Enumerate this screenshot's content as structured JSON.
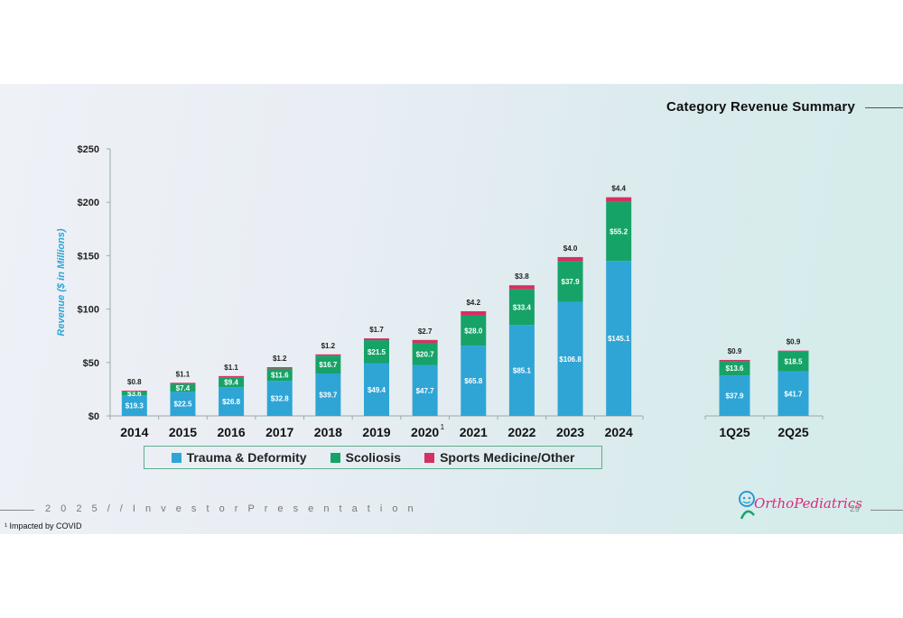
{
  "title": "Category Revenue Summary",
  "footer": {
    "text": "2 0 2 5  / /  I n v e s t o r   P r e s e n t a t i o n",
    "page": "29",
    "logo_main": "rthoPediatrics",
    "logo_initial": "O",
    "footnote": "¹ Impacted by COVID"
  },
  "colors": {
    "trauma": "#2fa5d6",
    "scoliosis": "#16a368",
    "sports": "#d63061"
  },
  "chart_data": {
    "type": "bar",
    "stacked": true,
    "ylabel": "Revenue  ($ in Millions)",
    "ylim": [
      0,
      250
    ],
    "yticks": [
      "$0",
      "$50",
      "$100",
      "$150",
      "$200",
      "$250"
    ],
    "annual": {
      "categories": [
        "2014",
        "2015",
        "2016",
        "2017",
        "2018",
        "2019",
        "2020",
        "2021",
        "2022",
        "2023",
        "2024"
      ],
      "category_superscripts": [
        "",
        "",
        "",
        "",
        "",
        "",
        "1",
        "",
        "",
        "",
        ""
      ],
      "series": [
        {
          "name": "Trauma & Deformity",
          "values": [
            19.3,
            22.5,
            26.8,
            32.8,
            39.7,
            49.4,
            47.7,
            65.8,
            85.1,
            106.8,
            145.1
          ],
          "labels": [
            "$19.3",
            "$22.5",
            "$26.8",
            "$32.8",
            "$39.7",
            "$49.4",
            "$47.7",
            "$65.8",
            "$85.1",
            "$106.8",
            "$145.1"
          ]
        },
        {
          "name": "Scoliosis",
          "values": [
            3.6,
            7.4,
            9.4,
            11.6,
            16.7,
            21.5,
            20.7,
            28.0,
            33.4,
            37.9,
            55.2
          ],
          "labels": [
            "$3.6",
            "$7.4",
            "$9.4",
            "$11.6",
            "$16.7",
            "$21.5",
            "$20.7",
            "$28.0",
            "$33.4",
            "$37.9",
            "$55.2"
          ]
        },
        {
          "name": "Sports Medicine/Other",
          "values": [
            0.8,
            1.1,
            1.1,
            1.2,
            1.2,
            1.7,
            2.7,
            4.2,
            3.8,
            4.0,
            4.4
          ],
          "labels": [
            "$0.8",
            "$1.1",
            "$1.1",
            "$1.2",
            "$1.2",
            "$1.7",
            "$2.7",
            "$4.2",
            "$3.8",
            "$4.0",
            "$4.4"
          ]
        }
      ]
    },
    "quarterly": {
      "categories": [
        "1Q25",
        "2Q25"
      ],
      "series": [
        {
          "name": "Trauma & Deformity",
          "values": [
            37.9,
            41.7
          ],
          "labels": [
            "$37.9",
            "$41.7"
          ]
        },
        {
          "name": "Scoliosis",
          "values": [
            13.6,
            18.5
          ],
          "labels": [
            "$13.6",
            "$18.5"
          ]
        },
        {
          "name": "Sports Medicine/Other",
          "values": [
            0.9,
            0.9
          ],
          "labels": [
            "$0.9",
            "$0.9"
          ]
        }
      ]
    },
    "legend": [
      "Trauma & Deformity",
      "Scoliosis",
      "Sports Medicine/Other"
    ]
  }
}
